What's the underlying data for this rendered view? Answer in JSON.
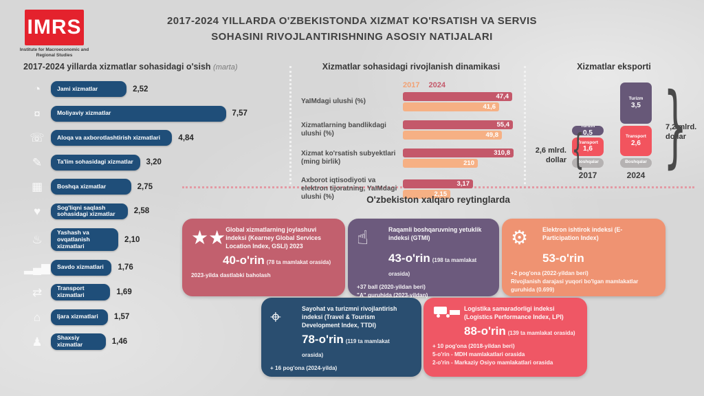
{
  "colors": {
    "imrs_red": "#e4222d",
    "navy_bar": "#1f4e79",
    "rose_2024": "#c4586a",
    "peach_2017": "#f6b084",
    "purple": "#675878",
    "red": "#f2545e",
    "gray": "#b5b2b2",
    "card_rose": "#c2606e",
    "card_purple": "#6c5a7d",
    "card_salmon": "#ef9372",
    "card_navy": "#2a4e70",
    "card_red": "#ef5765"
  },
  "logo": {
    "text": "IMRS",
    "subtitle": "Institute for Macroeconomic and Regional Studies"
  },
  "header": {
    "title_line1": "2017-2024 YILLARDA O'ZBEKISTONDA XIZMAT KO'RSATISH VA SERVIS",
    "title_line2": "SOHASINI RIVOJLANTIRISHNING ASOSIY NATIJALARI"
  },
  "growth_panel": {
    "title": "2017-2024 yillarda xizmatlar sohasidagi o'sish",
    "title_note": "(marta)",
    "items": [
      {
        "icon": "gauge-icon",
        "label": "Jami xizmatlar",
        "value": "2,52",
        "num": 2.52
      },
      {
        "icon": "coins-icon",
        "label": "Moliyaviy xizmatlar",
        "value": "7,57",
        "num": 7.57
      },
      {
        "icon": "communication-icon",
        "label": "Aloqa va axborotlashtirish xizmatlari",
        "value": "4,84",
        "num": 4.84
      },
      {
        "icon": "education-icon",
        "label": "Ta'lim sohasidagi xizmatlar",
        "value": "3,20",
        "num": 3.2
      },
      {
        "icon": "grid-icon",
        "label": "Boshqa xizmatlar",
        "value": "2,75",
        "num": 2.75
      },
      {
        "icon": "health-icon",
        "label": "Sog'liqni saqlash sohasidagi xizmatlar",
        "value": "2,58",
        "num": 2.58
      },
      {
        "icon": "dining-icon",
        "label": "Yashash va ovqatlanish xizmatlari",
        "value": "2,10",
        "num": 2.1
      },
      {
        "icon": "trade-chart-icon",
        "label": "Savdo xizmatlari",
        "value": "1,76",
        "num": 1.76
      },
      {
        "icon": "transport-icon",
        "label": "Transport xizmatlari",
        "value": "1,69",
        "num": 1.69
      },
      {
        "icon": "rental-icon",
        "label": "Ijara xizmatlari",
        "value": "1,57",
        "num": 1.57
      },
      {
        "icon": "person-icon",
        "label": "Shaxsiy xizmatlar",
        "value": "1,46",
        "num": 1.46
      }
    ]
  },
  "dynamics_panel": {
    "title": "Xizmatlar sohasidagi rivojlanish dinamikasi",
    "legend": {
      "y2017": "2017",
      "y2024": "2024"
    },
    "rows": [
      {
        "label": "YaIMdagi ulushi (%)",
        "v2024": "47,4",
        "n2024": 47.4,
        "v2017": "41,6",
        "n2017": 41.6,
        "scale": 50
      },
      {
        "label": "Xizmatlarning bandlikdagi ulushi (%)",
        "v2024": "55,4",
        "n2024": 55.4,
        "v2017": "49,8",
        "n2017": 49.8,
        "scale": 58
      },
      {
        "label": "Xizmat ko'rsatish subyektlari (ming birlik)",
        "v2024": "310,8",
        "n2024": 310.8,
        "v2017": "210",
        "n2017": 210,
        "scale": 325
      },
      {
        "label": "Axborot iqtisodiyoti va elektron tijoratning, YaIMdagi ulushi (%)",
        "v2024": "3,17",
        "n2024": 3.17,
        "v2017": "2,15",
        "n2017": 2.15,
        "scale": 5.2
      }
    ]
  },
  "export_panel": {
    "title": "Xizmatlar eksporti",
    "years": [
      {
        "year": "2017",
        "total": "2,6 mlrd. dollar",
        "segments": [
          {
            "name": "Turizm",
            "value": "0,5",
            "num": 0.5,
            "color_key": "purple"
          },
          {
            "name": "Transport",
            "value": "1,6",
            "num": 1.6,
            "color_key": "red"
          },
          {
            "name": "Boshqalar",
            "value": "",
            "num": null,
            "color_key": "gray"
          }
        ]
      },
      {
        "year": "2024",
        "total": "7,2 mlrd. dollar",
        "segments": [
          {
            "name": "Turizm",
            "value": "3,5",
            "num": 3.5,
            "color_key": "purple"
          },
          {
            "name": "Transport",
            "value": "2,6",
            "num": 2.6,
            "color_key": "red"
          },
          {
            "name": "Boshqalar",
            "value": "",
            "num": null,
            "color_key": "gray"
          }
        ]
      }
    ]
  },
  "ratings": {
    "title": "O'zbekiston xalqaro reytinglarda",
    "cards": [
      {
        "color": "#c2606e",
        "icon": "stars-hand-icon",
        "title": "Global xizmatlarning joylashuvi indeksi (Kearney Global Services Location Index, GSLI) 2023",
        "rank": "40-o'rin",
        "rank_note": "(78 ta mamlakat orasida)",
        "footnotes": [
          "2023-yilda dastlabki baholash"
        ]
      },
      {
        "color": "#6c5a7d",
        "icon": "digital-touch-icon",
        "title": "Raqamli boshqaruvning yetuklik indeksi (GTMI)",
        "rank": "43-o'rin",
        "rank_note": "(198 ta mamlakat orasida)",
        "footnotes": [
          "+37 ball (2020-yildan beri)",
          "\"A\" guruhida (2023-yildan)"
        ]
      },
      {
        "color": "#ef9372",
        "icon": "gear-circuit-icon",
        "title": "Elektron ishtirok indeksi (E-Participation Index)",
        "rank": "53-o'rin",
        "rank_note": "",
        "footnotes": [
          "+2 pog'ona (2022-yildan beri)",
          "Rivojlanish darajasi yuqori bo'lgan mamlakatlar guruhida (0.699)"
        ]
      },
      {
        "color": "#2a4e70",
        "icon": "travel-pin-icon",
        "title": "Sayohat va turizmni rivojlantirish indeksi (Travel & Tourism Development Index, TTDI)",
        "rank": "78-o'rin",
        "rank_note": "(119 ta mamlakat orasida)",
        "footnotes": [
          "+ 16 pog'ona (2024-yilda)"
        ]
      },
      {
        "color": "#ef5765",
        "icon": "logistics-truck-icon",
        "title": "Logistika samaradorligi indeksi (Logistics Performance Index, LPI)",
        "rank": "88-o'rin",
        "rank_note": "(139 ta mamlakat orasida)",
        "footnotes": [
          "+ 10 pog'ona (2018-yildan beri)",
          "5-o'rin - MDH mamlakatlari orasida",
          "2-o'rin - Markaziy Osiyo mamlakatlari orasida"
        ]
      }
    ]
  },
  "chart_data": [
    {
      "type": "bar",
      "title": "2017-2024 yillarda xizmatlar sohasidagi o'sish (marta)",
      "categories": [
        "Jami xizmatlar",
        "Moliyaviy xizmatlar",
        "Aloqa va axborotlashtirish xizmatlari",
        "Ta'lim sohasidagi xizmatlar",
        "Boshqa xizmatlar",
        "Sog'liqni saqlash sohasidagi xizmatlar",
        "Yashash va ovqatlanish xizmatlari",
        "Savdo xizmatlari",
        "Transport xizmatlari",
        "Ijara xizmatlari",
        "Shaxsiy xizmatlar"
      ],
      "values": [
        2.52,
        7.57,
        4.84,
        3.2,
        2.75,
        2.58,
        2.1,
        1.76,
        1.69,
        1.57,
        1.46
      ],
      "xlabel": "",
      "ylabel": "o'sish (marta)",
      "orientation": "horizontal",
      "grid": false
    },
    {
      "type": "bar",
      "title": "Xizmatlar sohasidagi rivojlanish dinamikasi",
      "categories": [
        "YaIMdagi ulushi (%)",
        "Xizmatlarning bandlikdagi ulushi (%)",
        "Xizmat ko'rsatish subyektlari (ming birlik)",
        "Axborot iqtisodiyoti va elektron tijoratning, YaIMdagi ulushi (%)"
      ],
      "series": [
        {
          "name": "2017",
          "values": [
            41.6,
            49.8,
            210,
            2.15
          ]
        },
        {
          "name": "2024",
          "values": [
            47.4,
            55.4,
            310.8,
            3.17
          ]
        }
      ],
      "orientation": "horizontal",
      "legend_position": "top",
      "grid": false
    },
    {
      "type": "bar",
      "subtype": "stacked",
      "title": "Xizmatlar eksporti (mlrd. dollar)",
      "categories": [
        "2017",
        "2024"
      ],
      "series": [
        {
          "name": "Turizm",
          "values": [
            0.5,
            3.5
          ]
        },
        {
          "name": "Transport",
          "values": [
            1.6,
            2.6
          ]
        },
        {
          "name": "Boshqalar",
          "values": [
            0.5,
            1.1
          ]
        }
      ],
      "totals_labels": [
        "2,6 mlrd. dollar",
        "7,2 mlrd. dollar"
      ],
      "grid": false
    }
  ]
}
